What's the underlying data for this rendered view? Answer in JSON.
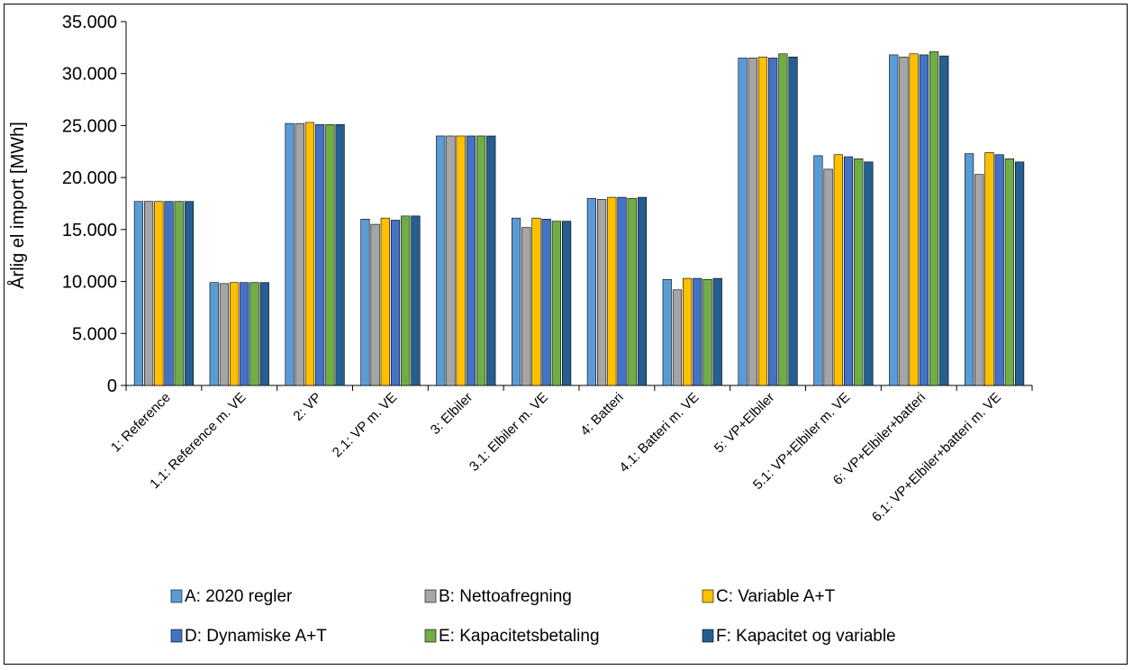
{
  "chart_data": {
    "type": "bar",
    "title": "",
    "xlabel": "",
    "ylabel": "Årlig el import [MWh]",
    "ylim": [
      0,
      35000
    ],
    "y_ticks": [
      0,
      5000,
      10000,
      15000,
      20000,
      25000,
      30000,
      35000
    ],
    "y_tick_labels": [
      "0",
      "5.000",
      "10.000",
      "15.000",
      "20.000",
      "25.000",
      "30.000",
      "35.000"
    ],
    "grid": false,
    "legend_position": "bottom",
    "categories": [
      "1: Reference",
      "1.1: Reference m. VE",
      "2: VP",
      "2.1: VP m. VE",
      "3: Elbiler",
      "3.1: Elbiler m. VE",
      "4: Batteri",
      "4.1: Batteri m. VE",
      "5: VP+Elbiler",
      "5.1: VP+Elbiler m. VE",
      "6: VP+Elbiler+batteri",
      "6.1: VP+Elbiler+batteri m. VE"
    ],
    "series": [
      {
        "name": "A: 2020 regler",
        "color": "#5b9bd5",
        "values": [
          17700,
          9900,
          25200,
          16000,
          24000,
          16100,
          18000,
          10200,
          31500,
          22100,
          31800,
          22300
        ]
      },
      {
        "name": "B: Nettoafregning",
        "color": "#a5a5a5",
        "values": [
          17700,
          9800,
          25200,
          15500,
          24000,
          15200,
          17900,
          9200,
          31500,
          20800,
          31600,
          20300
        ]
      },
      {
        "name": "C: Variable A+T",
        "color": "#ffc000",
        "values": [
          17700,
          9900,
          25300,
          16100,
          24000,
          16100,
          18100,
          10300,
          31600,
          22200,
          31900,
          22400
        ]
      },
      {
        "name": "D: Dynamiske A+T",
        "color": "#4472c4",
        "values": [
          17700,
          9900,
          25100,
          15900,
          24000,
          16000,
          18100,
          10300,
          31500,
          22000,
          31800,
          22200
        ]
      },
      {
        "name": "E: Kapacitetsbetaling",
        "color": "#70ad47",
        "values": [
          17700,
          9900,
          25100,
          16300,
          24000,
          15800,
          18000,
          10200,
          31900,
          21800,
          32100,
          21800
        ]
      },
      {
        "name": "F: Kapacitet og variable",
        "color": "#255e91",
        "values": [
          17700,
          9900,
          25100,
          16300,
          24000,
          15800,
          18100,
          10300,
          31600,
          21500,
          31700,
          21500
        ]
      }
    ]
  }
}
